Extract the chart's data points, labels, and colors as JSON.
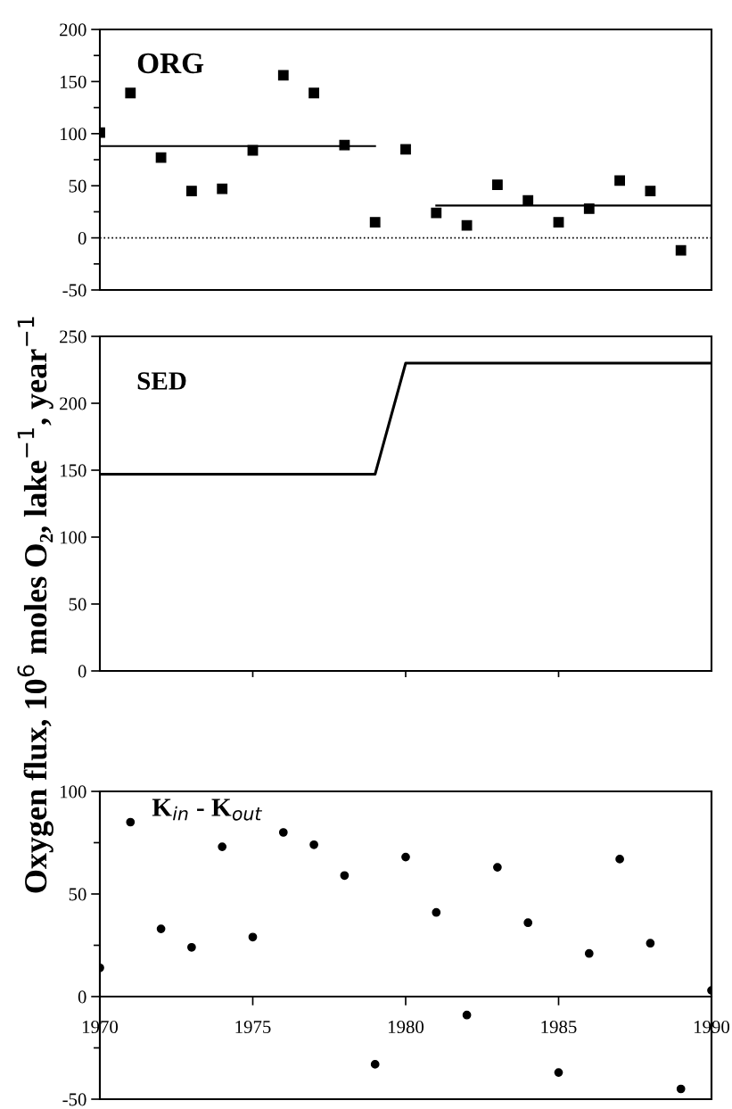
{
  "chart_data": [
    {
      "type": "scatter",
      "title": "ORG",
      "x": [
        1970,
        1971,
        1972,
        1973,
        1974,
        1975,
        1976,
        1977,
        1978,
        1979,
        1980,
        1981,
        1982,
        1983,
        1984,
        1985,
        1986,
        1987,
        1988,
        1989
      ],
      "series": [
        {
          "color": "#000000",
          "marker": "square",
          "values": [
            101,
            139,
            77,
            45,
            47,
            84,
            156,
            139,
            89,
            15,
            85,
            24,
            12,
            51,
            36,
            15,
            28,
            55,
            45,
            -12
          ]
        },
        {
          "type": "line",
          "color": "#000000",
          "marker": "none",
          "x": [
            1970,
            1979
          ],
          "values": [
            88,
            88
          ]
        },
        {
          "type": "line",
          "color": "#000000",
          "marker": "none",
          "x": [
            1981,
            1990
          ],
          "values": [
            31,
            31
          ]
        }
      ],
      "ref_lines": [
        {
          "axis": "y",
          "value": 0,
          "color": "#000000",
          "line_style": "dotted"
        }
      ],
      "xlim": [
        1970,
        1990
      ],
      "ylim": [
        -50,
        200
      ],
      "yticks": [
        -50,
        {
          "value": -25,
          "label": null
        },
        0,
        {
          "value": 25,
          "label": null
        },
        50,
        {
          "value": 75,
          "label": null
        },
        100,
        {
          "value": 125,
          "label": null
        },
        150,
        {
          "value": 175,
          "label": null
        },
        200
      ],
      "tick_labels": "y"
    },
    {
      "type": "line",
      "title": "SED",
      "ylabel": "Oxygen flux, 10$^{6}$ moles O₂, lake$^{−1}$, year$^{−1}$",
      "x": [
        1970,
        1979,
        1980,
        1990
      ],
      "series": [
        {
          "color": "#000000",
          "values": [
            147,
            147,
            230,
            230
          ]
        }
      ],
      "xlim": [
        1970,
        1990
      ],
      "ylim": [
        0,
        250
      ],
      "xticks": [
        {
          "value": 1975,
          "label": null
        },
        {
          "value": 1980,
          "label": null
        },
        {
          "value": 1985,
          "label": null
        }
      ],
      "yticks": [
        0,
        50,
        100,
        150,
        200,
        250
      ],
      "tick_labels": "y"
    },
    {
      "type": "scatter",
      "title": "K$_{in}$ - K$_{out}$",
      "x": [
        1970,
        1971,
        1972,
        1973,
        1974,
        1975,
        1976,
        1977,
        1978,
        1979,
        1980,
        1981,
        1982,
        1983,
        1984,
        1985,
        1986,
        1987,
        1988,
        1989,
        1990
      ],
      "series": [
        {
          "color": "#000000",
          "marker": "circle",
          "values": [
            14,
            85,
            33,
            24,
            73,
            29,
            80,
            74,
            59,
            -33,
            68,
            41,
            -9,
            63,
            36,
            -37,
            21,
            67,
            26,
            -45,
            3
          ]
        }
      ],
      "xlim": [
        1970,
        1990
      ],
      "ylim": [
        -50,
        100
      ],
      "xticks": [
        1970,
        1975,
        1980,
        1985,
        1990
      ],
      "yticks": [
        -50,
        {
          "value": -25,
          "label": null
        },
        0,
        {
          "value": 25,
          "label": null
        },
        50,
        {
          "value": 75,
          "label": null
        },
        100
      ]
    }
  ]
}
